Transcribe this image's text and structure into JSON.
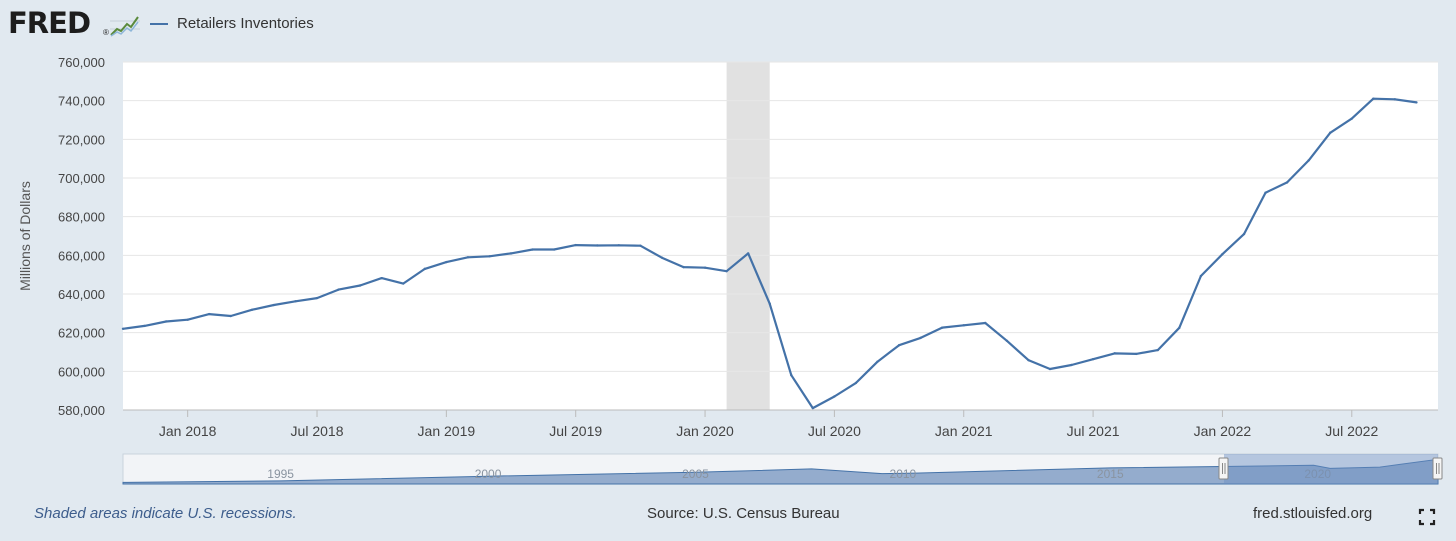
{
  "header": {
    "logo_text": "FRED",
    "logo_reg": "®",
    "legend_label": "Retailers Inventories"
  },
  "colors": {
    "background": "#e1e9f0",
    "plot_bg": "#ffffff",
    "series": "#4472a8",
    "recession": "#e1e1e1",
    "navigator_fill": "#8aa4c8",
    "navigator_line": "#4472a8"
  },
  "icons": {
    "logo": "chart-line-icon",
    "fullscreen": "fullscreen-icon"
  },
  "chart_data": {
    "type": "line",
    "title": "",
    "xlabel": "",
    "ylabel": "Millions of Dollars",
    "ylim": [
      580000,
      760000
    ],
    "xlim": [
      "2017-10",
      "2022-11"
    ],
    "y_ticks": [
      580000,
      600000,
      620000,
      640000,
      660000,
      680000,
      700000,
      720000,
      740000,
      760000
    ],
    "y_tick_labels": [
      "580,000",
      "600,000",
      "620,000",
      "640,000",
      "660,000",
      "680,000",
      "700,000",
      "720,000",
      "740,000",
      "760,000"
    ],
    "x_ticks": [
      "2018-01",
      "2018-07",
      "2019-01",
      "2019-07",
      "2020-01",
      "2020-07",
      "2021-01",
      "2021-07",
      "2022-01",
      "2022-07"
    ],
    "x_tick_labels": [
      "Jan 2018",
      "Jul 2018",
      "Jan 2019",
      "Jul 2019",
      "Jan 2020",
      "Jul 2020",
      "Jan 2021",
      "Jul 2021",
      "Jan 2022",
      "Jul 2022"
    ],
    "grid": true,
    "legend": "top-left",
    "recessions": [
      {
        "start": "2020-02",
        "end": "2020-04"
      }
    ],
    "series": [
      {
        "name": "Retailers Inventories",
        "x": [
          "2017-10",
          "2017-11",
          "2017-12",
          "2018-01",
          "2018-02",
          "2018-03",
          "2018-04",
          "2018-05",
          "2018-06",
          "2018-07",
          "2018-08",
          "2018-09",
          "2018-10",
          "2018-11",
          "2018-12",
          "2019-01",
          "2019-02",
          "2019-03",
          "2019-04",
          "2019-05",
          "2019-06",
          "2019-07",
          "2019-08",
          "2019-09",
          "2019-10",
          "2019-11",
          "2019-12",
          "2020-01",
          "2020-02",
          "2020-03",
          "2020-04",
          "2020-05",
          "2020-06",
          "2020-07",
          "2020-08",
          "2020-09",
          "2020-10",
          "2020-11",
          "2020-12",
          "2021-01",
          "2021-02",
          "2021-03",
          "2021-04",
          "2021-05",
          "2021-06",
          "2021-07",
          "2021-08",
          "2021-09",
          "2021-10",
          "2021-11",
          "2021-12",
          "2022-01",
          "2022-02",
          "2022-03",
          "2022-04",
          "2022-05",
          "2022-06",
          "2022-07",
          "2022-08",
          "2022-09",
          "2022-10"
        ],
        "values": [
          622000,
          623500,
          625800,
          626700,
          629600,
          628600,
          631900,
          634300,
          636200,
          637900,
          642300,
          644400,
          648200,
          645400,
          653000,
          656500,
          659000,
          659500,
          661000,
          663000,
          663000,
          665300,
          665100,
          665200,
          665000,
          658800,
          653900,
          653600,
          651800,
          661000,
          635000,
          598000,
          581000,
          587000,
          594000,
          605000,
          613500,
          617300,
          622600,
          623800,
          625000,
          615800,
          605800,
          601200,
          603300,
          606300,
          609300,
          609000,
          611000,
          622500,
          649300,
          660600,
          671000,
          692400,
          697700,
          709100,
          723400,
          730700,
          741000,
          740700,
          739100
        ]
      }
    ],
    "navigator": {
      "tick_labels": [
        "1995",
        "2000",
        "2005",
        "2010",
        "2015",
        "2020"
      ]
    }
  },
  "footer": {
    "note": "Shaded areas indicate U.S. recessions.",
    "source": "Source: U.S. Census Bureau",
    "link": "fred.stlouisfed.org"
  }
}
